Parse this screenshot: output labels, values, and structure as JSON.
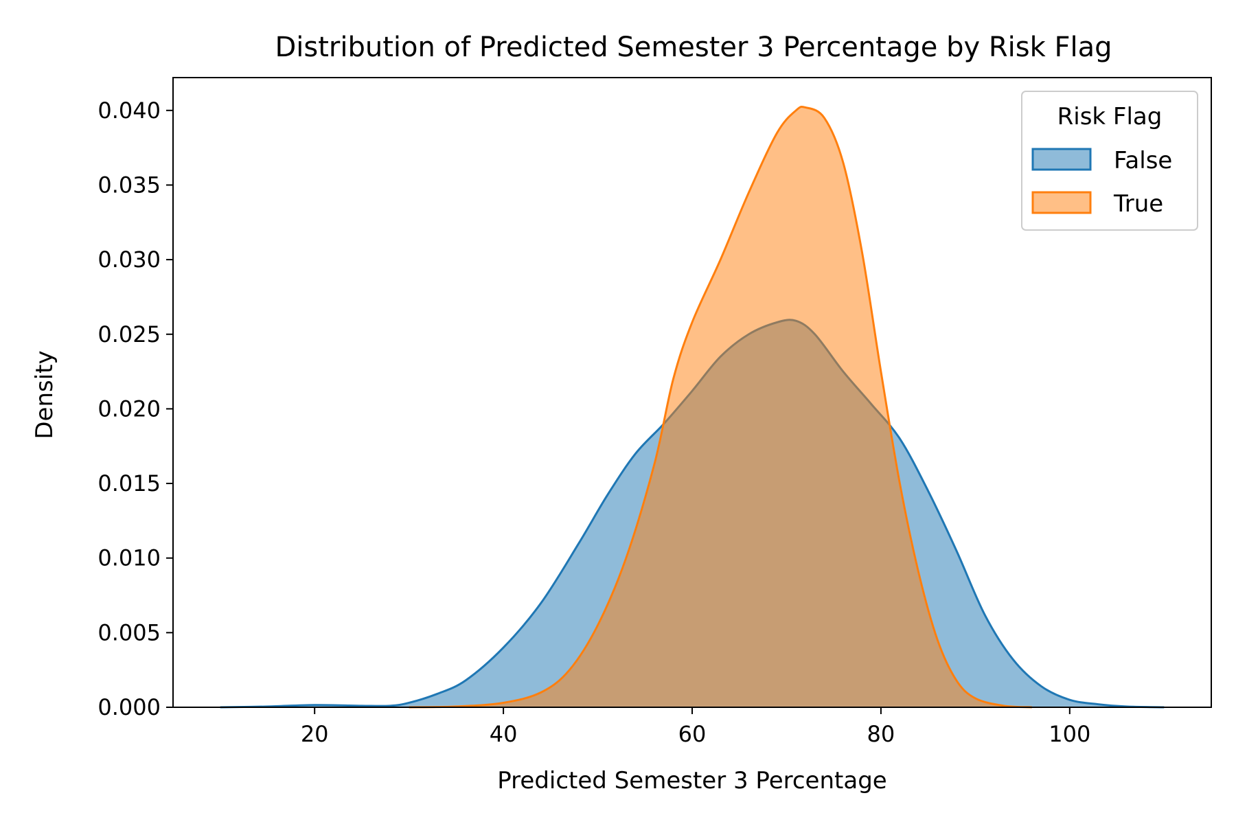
{
  "chart_data": {
    "type": "area",
    "chart_kind": "kde",
    "title": "Distribution of Predicted Semester 3 Percentage by Risk Flag",
    "xlabel": "Predicted Semester 3 Percentage",
    "ylabel": "Density",
    "xlim": [
      5,
      115
    ],
    "ylim": [
      0,
      0.0422
    ],
    "x_ticks": [
      20,
      40,
      60,
      80,
      100
    ],
    "x_tick_labels": [
      "20",
      "40",
      "60",
      "80",
      "100"
    ],
    "y_ticks": [
      0,
      0.005,
      0.01,
      0.015,
      0.02,
      0.025,
      0.03,
      0.035,
      0.04
    ],
    "y_tick_labels": [
      "0.000",
      "0.005",
      "0.010",
      "0.015",
      "0.020",
      "0.025",
      "0.030",
      "0.035",
      "0.040"
    ],
    "grid": false,
    "legend": {
      "title": "Risk Flag",
      "position": "top-right"
    },
    "series": [
      {
        "name": "False",
        "color": "#1f77b4",
        "fill_opacity": 0.5,
        "points": [
          [
            10,
            0
          ],
          [
            15,
            5e-05
          ],
          [
            20,
            0.00015
          ],
          [
            25,
            0.0001
          ],
          [
            28,
            0.0001
          ],
          [
            30,
            0.0003
          ],
          [
            33,
            0.0009
          ],
          [
            36,
            0.0018
          ],
          [
            40,
            0.004
          ],
          [
            44,
            0.007
          ],
          [
            48,
            0.011
          ],
          [
            51,
            0.0142
          ],
          [
            54,
            0.017
          ],
          [
            57,
            0.019
          ],
          [
            60,
            0.0212
          ],
          [
            63,
            0.0235
          ],
          [
            66,
            0.025
          ],
          [
            69,
            0.0258
          ],
          [
            71,
            0.0259
          ],
          [
            73,
            0.025
          ],
          [
            76,
            0.0225
          ],
          [
            79,
            0.0203
          ],
          [
            82,
            0.018
          ],
          [
            85,
            0.0145
          ],
          [
            88,
            0.0105
          ],
          [
            91,
            0.0062
          ],
          [
            94,
            0.0032
          ],
          [
            97,
            0.0014
          ],
          [
            100,
            0.0005
          ],
          [
            103,
            0.0002
          ],
          [
            106,
            5e-05
          ],
          [
            110,
            0
          ]
        ]
      },
      {
        "name": "True",
        "color": "#ff7f0e",
        "fill_opacity": 0.5,
        "points": [
          [
            30,
            0
          ],
          [
            35,
            5e-05
          ],
          [
            40,
            0.0003
          ],
          [
            44,
            0.001
          ],
          [
            47,
            0.0025
          ],
          [
            50,
            0.0055
          ],
          [
            53,
            0.01
          ],
          [
            56,
            0.0163
          ],
          [
            58,
            0.022
          ],
          [
            60,
            0.0258
          ],
          [
            63,
            0.03
          ],
          [
            66,
            0.0345
          ],
          [
            69,
            0.0385
          ],
          [
            71,
            0.04
          ],
          [
            72,
            0.0402
          ],
          [
            74,
            0.0395
          ],
          [
            76,
            0.0365
          ],
          [
            78,
            0.0305
          ],
          [
            80,
            0.0225
          ],
          [
            82,
            0.015
          ],
          [
            84,
            0.009
          ],
          [
            86,
            0.0045
          ],
          [
            88,
            0.0018
          ],
          [
            90,
            0.0006
          ],
          [
            93,
            0.0001
          ],
          [
            96,
            0
          ]
        ]
      }
    ]
  }
}
